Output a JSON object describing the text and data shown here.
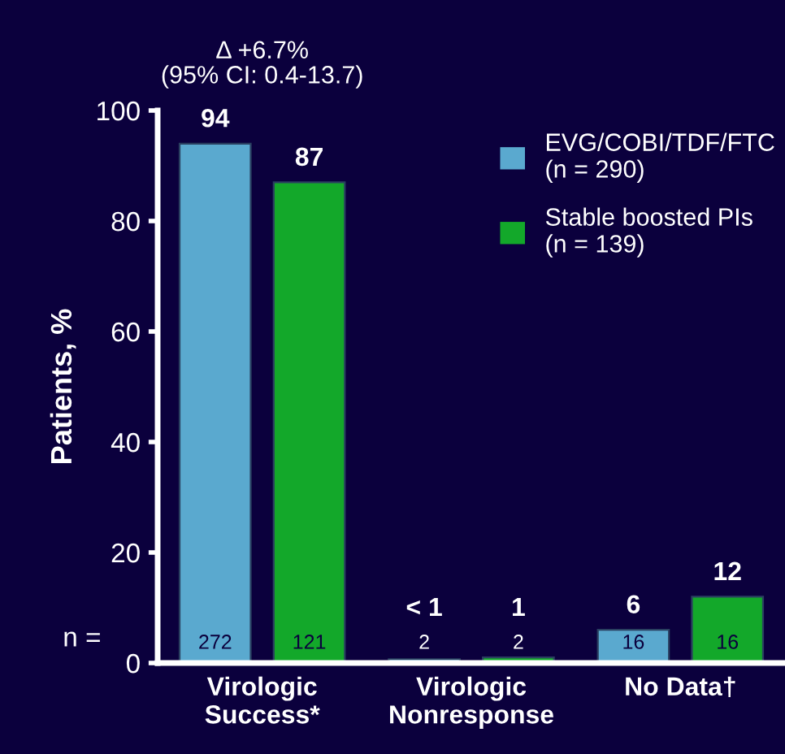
{
  "chart_data": {
    "type": "bar",
    "ylabel": "Patients, %",
    "categories": [
      "Virologic\nSuccess*",
      "Virologic\nNonresponse",
      "No Data†"
    ],
    "series": [
      {
        "name": "EVG/COBI/TDF/FTC\n(n = 290)",
        "color": "#5aa9cf",
        "values": [
          94,
          0.7,
          6
        ],
        "value_labels": [
          "94",
          "< 1",
          "6"
        ]
      },
      {
        "name": "Stable boosted PIs\n(n = 139)",
        "color": "#13a82a",
        "values": [
          87,
          1,
          12
        ],
        "value_labels": [
          "87",
          "1",
          "12"
        ]
      }
    ],
    "ylim": [
      0,
      100
    ],
    "yticks": [
      0,
      20,
      40,
      60,
      80,
      100
    ],
    "grid": false,
    "legend": "top right",
    "annotations": [
      "Δ +6.7%\n(95% CI: 0.4-13.7)",
      "n =",
      "272",
      "121",
      "2",
      "2",
      "16",
      "16"
    ]
  }
}
